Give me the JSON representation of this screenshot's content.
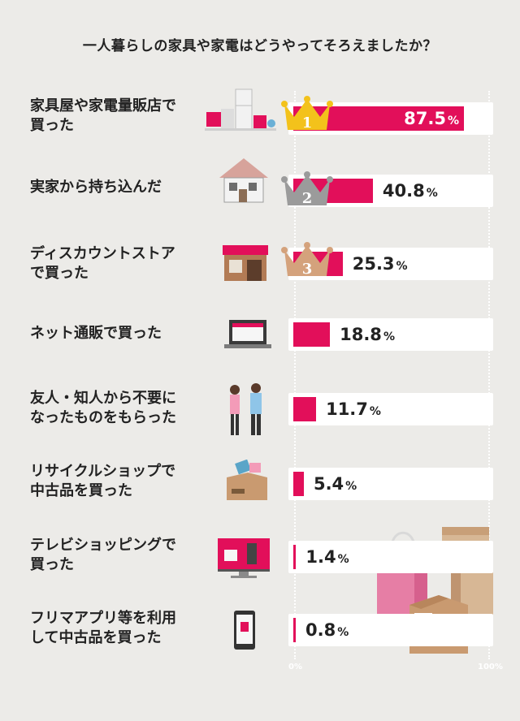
{
  "chart_data": {
    "type": "bar",
    "orientation": "horizontal",
    "title": "一人暮らしの家具や家電はどうやってそろえましたか？",
    "categories": [
      "家具屋や家電量販店で\n買った",
      "実家から持ち込んだ",
      "ディスカウントストア\nで買った",
      "ネット通販で買った",
      "友人・知人から不要に\nなったものをもらった",
      "リサイクルショップで\n中古品を買った",
      "テレビショッピングで\n買った",
      "フリマアプリ等を利用\nして中古品を買った"
    ],
    "values": [
      87.5,
      40.8,
      25.3,
      18.8,
      11.7,
      5.4,
      1.4,
      0.8
    ],
    "value_labels": [
      "87.5",
      "40.8",
      "25.3",
      "18.8",
      "11.7",
      "5.4",
      "1.4",
      "0.8"
    ],
    "value_unit": "%",
    "ranks": [
      "1",
      "2",
      "3"
    ],
    "xlim": [
      0,
      100
    ],
    "x_ticks": [
      "0%",
      "100%"
    ],
    "grid": true,
    "legend": "none"
  },
  "colors": {
    "bar": "#e20f5a",
    "background": "#ecebe8",
    "row_background": "#ffffff",
    "crown_gold": "#f3c21b",
    "crown_silver": "#9b9b9b",
    "crown_bronze": "#d4a27c"
  },
  "icons": [
    "appliances-icon",
    "house-icon",
    "shop-icon",
    "laptop-shop-icon",
    "people-talking-icon",
    "recycle-box-icon",
    "tv-shopping-icon",
    "smartphone-icon",
    "shopping-bag-icon",
    "cardboard-boxes-icon"
  ]
}
